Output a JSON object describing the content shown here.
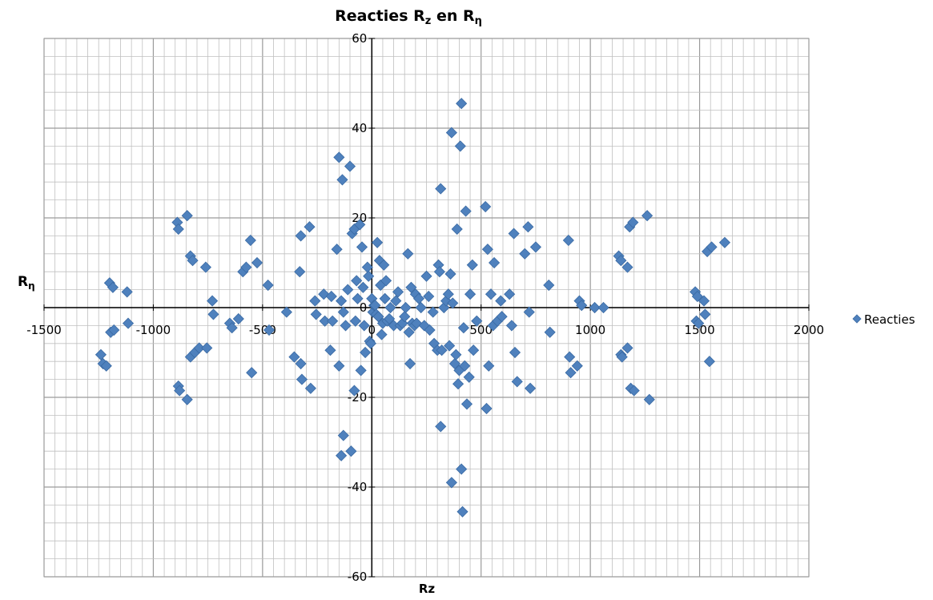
{
  "chart_data": {
    "type": "scatter",
    "title": "Reacties R",
    "title_sub_z": "z",
    "title_mid": " en R",
    "title_sub_eta": "η",
    "xlabel": "Rz",
    "ylabel": "R",
    "ylabel_sub": "η",
    "xlim": [
      -1500,
      2000
    ],
    "ylim": [
      -60,
      60
    ],
    "x_ticks": [
      -1500,
      -1000,
      -500,
      0,
      500,
      1000,
      1500,
      2000
    ],
    "y_ticks": [
      -60,
      -40,
      -20,
      0,
      20,
      40,
      60
    ],
    "x_tick_labels": [
      "-1500",
      "-1000",
      "-500",
      "0",
      "500",
      "1000",
      "1500",
      "2000"
    ],
    "y_tick_labels": [
      "-60",
      "-40",
      "-20",
      "0",
      "20",
      "40",
      "60"
    ],
    "grid": true,
    "legend_position": "right",
    "colors": {
      "marker": "#4f81bd",
      "marker_edge": "#3a6aa3",
      "grid": "#c0c0c0",
      "axis": "#000000"
    },
    "series": [
      {
        "name": "Reacties",
        "points": [
          [
            -1240,
            -10.5
          ],
          [
            -1230,
            -12.5
          ],
          [
            -1215,
            -13
          ],
          [
            -1200,
            5.5
          ],
          [
            -1195,
            -5.5
          ],
          [
            -1185,
            4.5
          ],
          [
            -1180,
            -5
          ],
          [
            -1120,
            3.5
          ],
          [
            -1115,
            -3.5
          ],
          [
            -890,
            19
          ],
          [
            -885,
            17.5
          ],
          [
            -885,
            -17.5
          ],
          [
            -880,
            -18.5
          ],
          [
            -845,
            20.5
          ],
          [
            -845,
            -20.5
          ],
          [
            -830,
            11.5
          ],
          [
            -820,
            10.5
          ],
          [
            -830,
            -11
          ],
          [
            -810,
            -10
          ],
          [
            -790,
            -9
          ],
          [
            -760,
            9
          ],
          [
            -755,
            -9
          ],
          [
            -730,
            1.5
          ],
          [
            -725,
            -1.5
          ],
          [
            -650,
            -3.5
          ],
          [
            -640,
            -4.5
          ],
          [
            -610,
            -2.5
          ],
          [
            -590,
            8
          ],
          [
            -575,
            9
          ],
          [
            -555,
            15
          ],
          [
            -550,
            -14.5
          ],
          [
            -525,
            10
          ],
          [
            -475,
            5
          ],
          [
            -470,
            -5
          ],
          [
            -390,
            -1
          ],
          [
            -355,
            -11
          ],
          [
            -330,
            8
          ],
          [
            -325,
            16
          ],
          [
            -325,
            -12.5
          ],
          [
            -320,
            -16
          ],
          [
            -285,
            18
          ],
          [
            -280,
            -18
          ],
          [
            -260,
            1.5
          ],
          [
            -255,
            -1.5
          ],
          [
            -220,
            3
          ],
          [
            -215,
            -3
          ],
          [
            -190,
            -9.5
          ],
          [
            -185,
            2.5
          ],
          [
            -180,
            -3
          ],
          [
            -160,
            13
          ],
          [
            -150,
            33.5
          ],
          [
            -140,
            -33
          ],
          [
            -135,
            28.5
          ],
          [
            -130,
            -28.5
          ],
          [
            -150,
            -13
          ],
          [
            -140,
            1.5
          ],
          [
            -130,
            -1
          ],
          [
            -120,
            -4
          ],
          [
            -110,
            4
          ],
          [
            -100,
            31.5
          ],
          [
            -95,
            -32
          ],
          [
            -90,
            16.5
          ],
          [
            -80,
            17.5
          ],
          [
            -80,
            -18.5
          ],
          [
            -75,
            -3
          ],
          [
            -70,
            6
          ],
          [
            -65,
            2
          ],
          [
            -55,
            18.5
          ],
          [
            -50,
            -14
          ],
          [
            -45,
            13.5
          ],
          [
            -40,
            4.5
          ],
          [
            -35,
            -4
          ],
          [
            -30,
            -10
          ],
          [
            -20,
            9
          ],
          [
            -15,
            7
          ],
          [
            -10,
            -7.5
          ],
          [
            -5,
            -8
          ],
          [
            0,
            2
          ],
          [
            5,
            -1
          ],
          [
            10,
            0.5
          ],
          [
            15,
            0.5
          ],
          [
            20,
            -1.5
          ],
          [
            25,
            14.5
          ],
          [
            30,
            -2
          ],
          [
            35,
            10.5
          ],
          [
            40,
            5
          ],
          [
            45,
            -6
          ],
          [
            50,
            -3.5
          ],
          [
            55,
            9.5
          ],
          [
            60,
            2
          ],
          [
            65,
            6
          ],
          [
            70,
            -3
          ],
          [
            80,
            -2.5
          ],
          [
            85,
            0
          ],
          [
            100,
            -4
          ],
          [
            110,
            1.5
          ],
          [
            120,
            3.5
          ],
          [
            130,
            -4
          ],
          [
            140,
            -3.5
          ],
          [
            150,
            -2
          ],
          [
            155,
            0
          ],
          [
            165,
            12
          ],
          [
            170,
            -5.5
          ],
          [
            175,
            -12.5
          ],
          [
            180,
            4.5
          ],
          [
            185,
            -3.5
          ],
          [
            195,
            -4
          ],
          [
            200,
            3
          ],
          [
            205,
            -3.5
          ],
          [
            215,
            2
          ],
          [
            225,
            0
          ],
          [
            240,
            -4
          ],
          [
            250,
            7
          ],
          [
            260,
            2.5
          ],
          [
            265,
            -5
          ],
          [
            280,
            -1
          ],
          [
            285,
            -8
          ],
          [
            300,
            -9.5
          ],
          [
            305,
            9.5
          ],
          [
            310,
            8
          ],
          [
            315,
            26.5
          ],
          [
            315,
            -26.5
          ],
          [
            320,
            -9.5
          ],
          [
            330,
            0
          ],
          [
            340,
            1.5
          ],
          [
            350,
            3
          ],
          [
            355,
            -8.5
          ],
          [
            360,
            7.5
          ],
          [
            365,
            39
          ],
          [
            365,
            -39
          ],
          [
            370,
            1
          ],
          [
            380,
            -12.5
          ],
          [
            385,
            -10.5
          ],
          [
            390,
            17.5
          ],
          [
            395,
            -17
          ],
          [
            400,
            -14
          ],
          [
            405,
            36
          ],
          [
            410,
            45.5
          ],
          [
            410,
            -36
          ],
          [
            415,
            -45.5
          ],
          [
            420,
            -4.5
          ],
          [
            425,
            -13
          ],
          [
            430,
            21.5
          ],
          [
            435,
            -21.5
          ],
          [
            445,
            -15.5
          ],
          [
            450,
            3
          ],
          [
            460,
            9.5
          ],
          [
            465,
            -9.5
          ],
          [
            480,
            -3
          ],
          [
            520,
            22.5
          ],
          [
            525,
            -22.5
          ],
          [
            530,
            13
          ],
          [
            535,
            -13
          ],
          [
            545,
            3
          ],
          [
            555,
            -4
          ],
          [
            560,
            10
          ],
          [
            575,
            -3
          ],
          [
            590,
            1.5
          ],
          [
            595,
            -2
          ],
          [
            630,
            3
          ],
          [
            640,
            -4
          ],
          [
            650,
            16.5
          ],
          [
            655,
            -10
          ],
          [
            665,
            -16.5
          ],
          [
            700,
            12
          ],
          [
            715,
            18
          ],
          [
            720,
            -1
          ],
          [
            725,
            -18
          ],
          [
            750,
            13.5
          ],
          [
            810,
            5
          ],
          [
            815,
            -5.5
          ],
          [
            900,
            15
          ],
          [
            905,
            -11
          ],
          [
            910,
            -14.5
          ],
          [
            940,
            -13
          ],
          [
            950,
            1.5
          ],
          [
            960,
            0.5
          ],
          [
            1020,
            0
          ],
          [
            1060,
            0
          ],
          [
            1130,
            11.5
          ],
          [
            1140,
            10.5
          ],
          [
            1140,
            -10.5
          ],
          [
            1145,
            -11
          ],
          [
            1170,
            -9
          ],
          [
            1170,
            9
          ],
          [
            1180,
            18
          ],
          [
            1185,
            -18
          ],
          [
            1195,
            19
          ],
          [
            1200,
            -18.5
          ],
          [
            1260,
            20.5
          ],
          [
            1270,
            -20.5
          ],
          [
            1480,
            3.5
          ],
          [
            1485,
            -3
          ],
          [
            1490,
            2.5
          ],
          [
            1495,
            -3.5
          ],
          [
            1520,
            1.5
          ],
          [
            1525,
            -1.5
          ],
          [
            1535,
            12.5
          ],
          [
            1545,
            -12
          ],
          [
            1555,
            13.5
          ],
          [
            1615,
            14.5
          ]
        ]
      }
    ]
  }
}
